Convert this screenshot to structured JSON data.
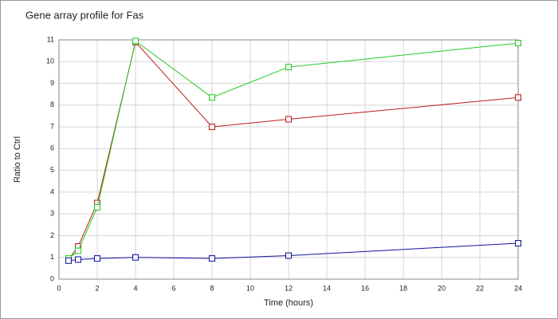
{
  "chart_data": {
    "type": "line",
    "title": "Gene array profile for Fas",
    "xlabel": "Time (hours)",
    "ylabel": "Ratio to Ctrl",
    "x": [
      0.5,
      1,
      2,
      4,
      8,
      12,
      24
    ],
    "series": [
      {
        "color": "#c01818",
        "values": [
          0.9,
          1.5,
          3.5,
          10.9,
          7.0,
          7.35,
          8.35
        ]
      },
      {
        "color": "#22cc22",
        "values": [
          0.95,
          1.3,
          3.3,
          10.95,
          8.35,
          9.75,
          10.85
        ]
      },
      {
        "color": "#1010a0",
        "values": [
          0.85,
          0.9,
          0.95,
          1.0,
          0.95,
          1.08,
          1.65
        ]
      }
    ],
    "xlim": [
      0,
      24
    ],
    "xticks": [
      0,
      2,
      4,
      6,
      8,
      10,
      12,
      14,
      16,
      18,
      20,
      22,
      24
    ],
    "ylim": [
      0,
      11
    ],
    "yticks": [
      0,
      1,
      2,
      3,
      4,
      5,
      6,
      7,
      8,
      9,
      10,
      11
    ],
    "grid": true
  }
}
